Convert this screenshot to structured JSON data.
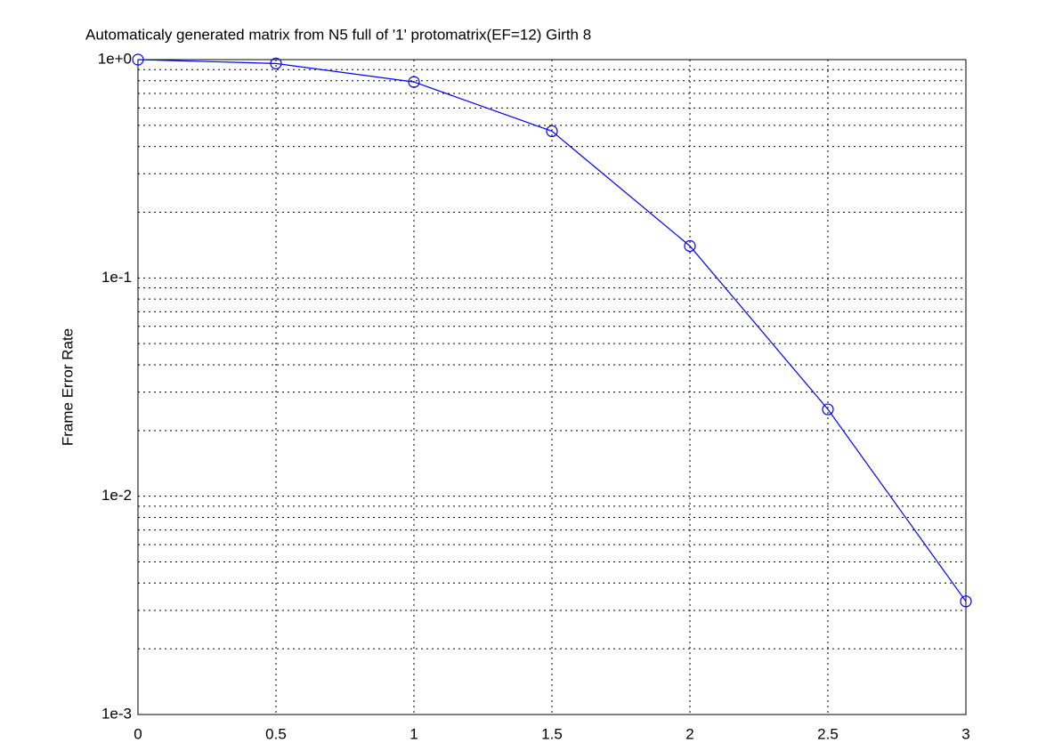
{
  "chart_data": {
    "type": "line",
    "title": "Automaticaly generated matrix from N5 full of '1' protomatrix(EF=12) Girth 8",
    "y_label": "Frame Error Rate",
    "x": [
      0,
      0.5,
      1,
      1.5,
      2,
      2.5,
      3
    ],
    "values": [
      1.0,
      0.96,
      0.79,
      0.47,
      0.14,
      0.025,
      0.0033
    ],
    "color": "#0000ff",
    "xlim": [
      0,
      3
    ],
    "xticks": [
      0,
      0.5,
      1,
      1.5,
      2,
      2.5,
      3
    ],
    "ylim": [
      0.001,
      1
    ],
    "ylog": true,
    "yticks": [
      {
        "value": 0.001,
        "label": "1e-3"
      },
      {
        "value": 0.01,
        "label": "1e-2"
      },
      {
        "value": 0.1,
        "label": "1e-1"
      },
      {
        "value": 1,
        "label": "1e+0"
      }
    ],
    "yminorticks": [
      0.002,
      0.003,
      0.004,
      0.005,
      0.006,
      0.007,
      0.008,
      0.009,
      0.02,
      0.03,
      0.04,
      0.05,
      0.06,
      0.07,
      0.08,
      0.09,
      0.2,
      0.3,
      0.4,
      0.5,
      0.6,
      0.7,
      0.8,
      0.9
    ],
    "grid": true
  }
}
